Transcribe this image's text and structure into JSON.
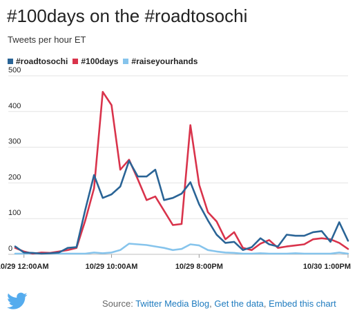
{
  "header": {
    "title": "#100days on the #roadtosochi",
    "subtitle": "Tweets per hour ET"
  },
  "colors": {
    "roadtosochi": "#2a6496",
    "100days": "#d9334b",
    "raiseyourhands": "#86c4ec",
    "link": "#1e7bbf",
    "twitter_bird": "#55acee"
  },
  "icons": {
    "logo": "twitter-bird-icon"
  },
  "footer": {
    "source_prefix": "Source: ",
    "source_link": "Twitter Media Blog",
    "sep1": ", ",
    "data_link": "Get the data",
    "sep2": ", ",
    "embed_link": "Embed this chart"
  },
  "chart_data": {
    "type": "line",
    "ylim": [
      0,
      500
    ],
    "y_ticks": [
      0,
      100,
      200,
      300,
      400,
      500
    ],
    "x_tick_labels": [
      {
        "label": "10/29 12:00AM",
        "index": 1
      },
      {
        "label": "10/29 10:00AM",
        "index": 11
      },
      {
        "label": "10/29 8:00PM",
        "index": 21
      },
      {
        "label": "10/30 1:00PM",
        "index": 38
      }
    ],
    "grid": true,
    "legend_placement": "top-left",
    "series": [
      {
        "name": "#roadtosochi",
        "color_key": "roadtosochi",
        "values": [
          22,
          5,
          4,
          2,
          3,
          5,
          18,
          20,
          125,
          222,
          158,
          168,
          190,
          262,
          218,
          218,
          237,
          152,
          158,
          170,
          202,
          140,
          95,
          55,
          32,
          35,
          12,
          20,
          45,
          28,
          22,
          55,
          52,
          52,
          62,
          65,
          35,
          90,
          38
        ]
      },
      {
        "name": "#100days",
        "color_key": "100days",
        "values": [
          18,
          8,
          2,
          5,
          4,
          8,
          12,
          18,
          95,
          185,
          455,
          418,
          237,
          265,
          210,
          152,
          162,
          122,
          82,
          85,
          362,
          195,
          118,
          92,
          42,
          62,
          18,
          12,
          30,
          40,
          18,
          22,
          25,
          28,
          42,
          45,
          42,
          32,
          15
        ]
      },
      {
        "name": "#raiseyourhands",
        "color_key": "raiseyourhands",
        "values": [
          2,
          2,
          2,
          3,
          3,
          2,
          2,
          2,
          2,
          5,
          3,
          5,
          12,
          30,
          28,
          26,
          22,
          18,
          12,
          15,
          28,
          25,
          12,
          8,
          5,
          4,
          2,
          2,
          3,
          2,
          2,
          2,
          3,
          2,
          2,
          2,
          2,
          5,
          2
        ]
      }
    ]
  }
}
